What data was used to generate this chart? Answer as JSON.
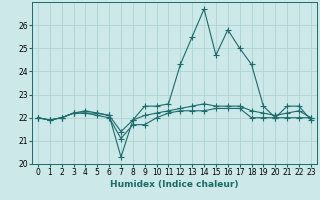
{
  "title": "",
  "xlabel": "Humidex (Indice chaleur)",
  "background_color": "#cce8e8",
  "grid_color": "#aacfcf",
  "line_color": "#1a6b6b",
  "x_values": [
    0,
    1,
    2,
    3,
    4,
    5,
    6,
    7,
    8,
    9,
    10,
    11,
    12,
    13,
    14,
    15,
    16,
    17,
    18,
    19,
    20,
    21,
    22,
    23
  ],
  "series": [
    [
      22.0,
      21.9,
      22.0,
      22.2,
      22.2,
      22.2,
      22.1,
      20.3,
      21.9,
      22.5,
      22.5,
      22.6,
      24.3,
      25.5,
      26.7,
      24.7,
      25.8,
      25.0,
      24.3,
      22.5,
      22.0,
      22.5,
      22.5,
      21.9
    ],
    [
      22.0,
      21.9,
      22.0,
      22.2,
      22.2,
      22.1,
      22.0,
      21.1,
      21.7,
      21.7,
      22.0,
      22.2,
      22.3,
      22.3,
      22.3,
      22.4,
      22.4,
      22.4,
      22.0,
      22.0,
      22.0,
      22.0,
      22.0,
      22.0
    ],
    [
      22.0,
      21.9,
      22.0,
      22.2,
      22.3,
      22.2,
      22.1,
      21.4,
      21.9,
      22.1,
      22.2,
      22.3,
      22.4,
      22.5,
      22.6,
      22.5,
      22.5,
      22.5,
      22.3,
      22.2,
      22.1,
      22.2,
      22.3,
      22.0
    ]
  ],
  "ylim": [
    20,
    27
  ],
  "yticks": [
    20,
    21,
    22,
    23,
    24,
    25,
    26
  ],
  "xticks": [
    0,
    1,
    2,
    3,
    4,
    5,
    6,
    7,
    8,
    9,
    10,
    11,
    12,
    13,
    14,
    15,
    16,
    17,
    18,
    19,
    20,
    21,
    22,
    23
  ],
  "marker": "+",
  "linewidth": 0.8,
  "markersize": 4,
  "tick_fontsize": 5.5,
  "xlabel_fontsize": 6.5
}
